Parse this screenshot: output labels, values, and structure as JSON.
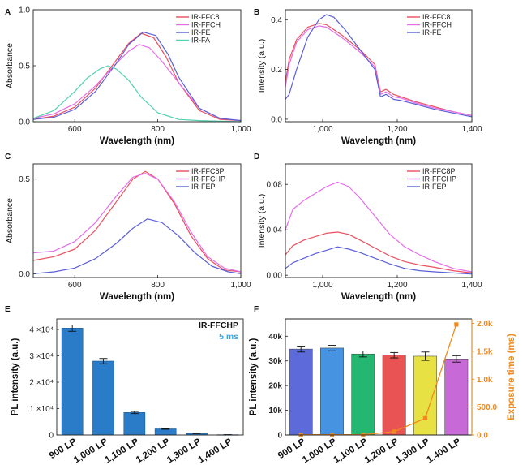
{
  "panels": {
    "A": "A",
    "B": "B",
    "C": "C",
    "D": "D",
    "E": "E",
    "F": "F"
  },
  "colors": {
    "ffc8": "#e8505e",
    "ffch": "#e46de8",
    "fe": "#5b5fd6",
    "fa": "#53d1b0",
    "bar_blue": "#2a7cc8",
    "exposure": "#f08a1e",
    "annot_blue": "#3aa7e8"
  },
  "chart_data": [
    {
      "panel": "A",
      "type": "line",
      "xlabel": "Wavelength (nm)",
      "ylabel": "Absorbance",
      "xlim": [
        500,
        1000
      ],
      "ylim": [
        0,
        1.0
      ],
      "xticks": [
        600,
        800,
        1000
      ],
      "xtick_labels": [
        "600",
        "800",
        "1,000"
      ],
      "yticks": [
        0.0,
        0.5,
        1.0
      ],
      "ytick_labels": [
        "0.0",
        "0.5",
        "1.0"
      ],
      "legend": "top-right",
      "series": [
        {
          "name": "IR-FFC8",
          "color": "#e8505e",
          "x": [
            500,
            550,
            600,
            650,
            700,
            730,
            760,
            790,
            820,
            850,
            900,
            950,
            1000
          ],
          "y": [
            0.02,
            0.05,
            0.13,
            0.3,
            0.55,
            0.7,
            0.79,
            0.75,
            0.58,
            0.35,
            0.1,
            0.02,
            0.01
          ]
        },
        {
          "name": "IR-FFCH",
          "color": "#e46de8",
          "x": [
            500,
            550,
            600,
            650,
            700,
            730,
            755,
            780,
            810,
            850,
            900,
            950,
            1000
          ],
          "y": [
            0.03,
            0.07,
            0.16,
            0.32,
            0.52,
            0.63,
            0.69,
            0.66,
            0.54,
            0.35,
            0.12,
            0.03,
            0.01
          ]
        },
        {
          "name": "IR-FE",
          "color": "#5b5fd6",
          "x": [
            500,
            550,
            600,
            650,
            700,
            730,
            765,
            795,
            825,
            850,
            900,
            950,
            1000
          ],
          "y": [
            0.02,
            0.04,
            0.11,
            0.27,
            0.52,
            0.69,
            0.8,
            0.77,
            0.6,
            0.4,
            0.12,
            0.03,
            0.01
          ]
        },
        {
          "name": "IR-FA",
          "color": "#53d1b0",
          "x": [
            500,
            550,
            600,
            630,
            660,
            680,
            700,
            730,
            760,
            800,
            850,
            900,
            1000
          ],
          "y": [
            0.03,
            0.1,
            0.27,
            0.39,
            0.47,
            0.5,
            0.47,
            0.37,
            0.22,
            0.08,
            0.02,
            0.01,
            0.0
          ]
        }
      ]
    },
    {
      "panel": "B",
      "type": "line",
      "xlabel": "Wavelength (nm)",
      "ylabel": "Intensity (a.u.)",
      "xlim": [
        900,
        1400
      ],
      "ylim": [
        -0.01,
        0.44
      ],
      "xticks": [
        1000,
        1200,
        1400
      ],
      "xtick_labels": [
        "1,000",
        "1,200",
        "1,400"
      ],
      "yticks": [
        0.0,
        0.2,
        0.4
      ],
      "ytick_labels": [
        "0.0",
        "0.2",
        "0.4"
      ],
      "legend": "top-right",
      "series": [
        {
          "name": "IR-FFC8",
          "color": "#e8505e",
          "x": [
            900,
            910,
            930,
            960,
            990,
            1010,
            1050,
            1100,
            1140,
            1155,
            1170,
            1190,
            1210,
            1250,
            1300,
            1350,
            1400
          ],
          "y": [
            0.15,
            0.24,
            0.32,
            0.37,
            0.385,
            0.38,
            0.34,
            0.28,
            0.22,
            0.11,
            0.12,
            0.1,
            0.09,
            0.07,
            0.05,
            0.03,
            0.015
          ]
        },
        {
          "name": "IR-FFCH",
          "color": "#e46de8",
          "x": [
            900,
            910,
            930,
            960,
            990,
            1010,
            1050,
            1100,
            1140,
            1155,
            1170,
            1190,
            1210,
            1250,
            1300,
            1350,
            1400
          ],
          "y": [
            0.13,
            0.22,
            0.31,
            0.36,
            0.375,
            0.37,
            0.33,
            0.27,
            0.21,
            0.1,
            0.11,
            0.09,
            0.085,
            0.065,
            0.045,
            0.03,
            0.015
          ]
        },
        {
          "name": "IR-FE",
          "color": "#5b5fd6",
          "x": [
            900,
            910,
            930,
            960,
            990,
            1010,
            1030,
            1060,
            1100,
            1140,
            1155,
            1170,
            1190,
            1210,
            1250,
            1300,
            1350,
            1400
          ],
          "y": [
            0.08,
            0.1,
            0.2,
            0.33,
            0.4,
            0.42,
            0.41,
            0.36,
            0.28,
            0.2,
            0.09,
            0.1,
            0.08,
            0.075,
            0.06,
            0.04,
            0.025,
            0.01
          ]
        }
      ]
    },
    {
      "panel": "C",
      "type": "line",
      "xlabel": "Wavelength (nm)",
      "ylabel": "Absorbance",
      "xlim": [
        500,
        1000
      ],
      "ylim": [
        -0.02,
        0.58
      ],
      "xticks": [
        600,
        800,
        1000
      ],
      "xtick_labels": [
        "600",
        "800",
        "1,000"
      ],
      "yticks": [
        0.0,
        0.5
      ],
      "ytick_labels": [
        "0.0",
        "0.5"
      ],
      "legend": "top-right",
      "series": [
        {
          "name": "IR-FFC8P",
          "color": "#e8505e",
          "x": [
            500,
            550,
            600,
            650,
            700,
            740,
            770,
            800,
            840,
            880,
            920,
            960,
            1000
          ],
          "y": [
            0.07,
            0.09,
            0.13,
            0.23,
            0.38,
            0.5,
            0.54,
            0.5,
            0.37,
            0.2,
            0.08,
            0.02,
            0.01
          ]
        },
        {
          "name": "IR-FFCHP",
          "color": "#e46de8",
          "x": [
            500,
            550,
            600,
            650,
            700,
            740,
            770,
            800,
            840,
            880,
            920,
            960,
            1000
          ],
          "y": [
            0.11,
            0.12,
            0.17,
            0.27,
            0.41,
            0.51,
            0.53,
            0.5,
            0.38,
            0.22,
            0.09,
            0.03,
            0.01
          ]
        },
        {
          "name": "IR-FEP",
          "color": "#5b5fd6",
          "x": [
            500,
            550,
            600,
            650,
            700,
            740,
            775,
            810,
            850,
            890,
            930,
            970,
            1000
          ],
          "y": [
            0.0,
            0.01,
            0.03,
            0.08,
            0.16,
            0.24,
            0.29,
            0.27,
            0.2,
            0.11,
            0.04,
            0.01,
            0.0
          ]
        }
      ]
    },
    {
      "panel": "D",
      "type": "line",
      "xlabel": "Wavelength (nm)",
      "ylabel": "Intensity (a.u.)",
      "xlim": [
        900,
        1400
      ],
      "ylim": [
        -0.002,
        0.098
      ],
      "xticks": [
        1000,
        1200,
        1400
      ],
      "xtick_labels": [
        "1,000",
        "1,200",
        "1,400"
      ],
      "yticks": [
        0.0,
        0.04,
        0.08
      ],
      "ytick_labels": [
        "0.00",
        "0.04",
        "0.08"
      ],
      "legend": "top-right",
      "series": [
        {
          "name": "IR-FFC8P",
          "color": "#e8505e",
          "x": [
            900,
            920,
            950,
            980,
            1010,
            1040,
            1070,
            1100,
            1140,
            1180,
            1220,
            1260,
            1300,
            1350,
            1400
          ],
          "y": [
            0.018,
            0.026,
            0.031,
            0.034,
            0.037,
            0.038,
            0.036,
            0.031,
            0.024,
            0.017,
            0.012,
            0.009,
            0.007,
            0.004,
            0.002
          ]
        },
        {
          "name": "IR-FFCHP",
          "color": "#e46de8",
          "x": [
            900,
            920,
            950,
            980,
            1010,
            1040,
            1070,
            1100,
            1140,
            1180,
            1220,
            1260,
            1300,
            1350,
            1400
          ],
          "y": [
            0.04,
            0.058,
            0.066,
            0.072,
            0.078,
            0.082,
            0.078,
            0.068,
            0.052,
            0.036,
            0.025,
            0.018,
            0.012,
            0.006,
            0.003
          ]
        },
        {
          "name": "IR-FEP",
          "color": "#5b5fd6",
          "x": [
            900,
            920,
            950,
            980,
            1010,
            1040,
            1070,
            1100,
            1140,
            1180,
            1220,
            1260,
            1300,
            1350,
            1400
          ],
          "y": [
            0.006,
            0.011,
            0.015,
            0.019,
            0.022,
            0.025,
            0.023,
            0.02,
            0.015,
            0.01,
            0.006,
            0.004,
            0.003,
            0.002,
            0.001
          ]
        }
      ]
    },
    {
      "panel": "E",
      "type": "bar",
      "ylabel": "PL intensity (a.u.)",
      "categories": [
        "900 LP",
        "1,000 LP",
        "1,100 LP",
        "1,200 LP",
        "1,300 LP",
        "1,400 LP"
      ],
      "values": [
        40500,
        28000,
        8500,
        2300,
        600,
        100
      ],
      "errors": [
        1200,
        1000,
        400,
        150,
        80,
        30
      ],
      "ylim": [
        0,
        44000
      ],
      "yticks": [
        0,
        10000,
        20000,
        30000,
        40000
      ],
      "ytick_labels": [
        "0",
        "1 ×10⁴",
        "2 ×10⁴",
        "3 ×10⁴",
        "4 ×10⁴"
      ],
      "annotation_title": "IR-FFCHP",
      "annotation_sub": "5 ms",
      "color": "#2a7cc8"
    },
    {
      "panel": "F",
      "type": "bar",
      "ylabel": "PL intensity (a.u.)",
      "categories": [
        "900 LP",
        "1,000 LP",
        "1,100 LP",
        "1,200 LP",
        "1,300 LP",
        "1,400 LP"
      ],
      "values": [
        34800,
        35200,
        32800,
        32300,
        31900,
        30800
      ],
      "errors": [
        1200,
        1100,
        1200,
        1100,
        1700,
        1300
      ],
      "bar_colors": [
        "#5563d8",
        "#3d8ee0",
        "#18b46a",
        "#e94a4a",
        "#e6e03a",
        "#c662d6"
      ],
      "ylim": [
        0,
        47000
      ],
      "yticks": [
        0,
        10000,
        20000,
        30000,
        40000
      ],
      "ytick_labels": [
        "0",
        "10k",
        "20k",
        "30k",
        "40k"
      ],
      "y2label": "Exposure time (ms)",
      "y2lim": [
        0,
        2080
      ],
      "y2ticks": [
        0,
        500,
        1000,
        1500,
        2000
      ],
      "y2tick_labels": [
        "0.0",
        "500.0",
        "1.0k",
        "1.5k",
        "2.0k"
      ],
      "exposure_values": [
        5,
        5,
        5,
        60,
        300,
        1980
      ],
      "exposure_color": "#f08a1e"
    }
  ]
}
